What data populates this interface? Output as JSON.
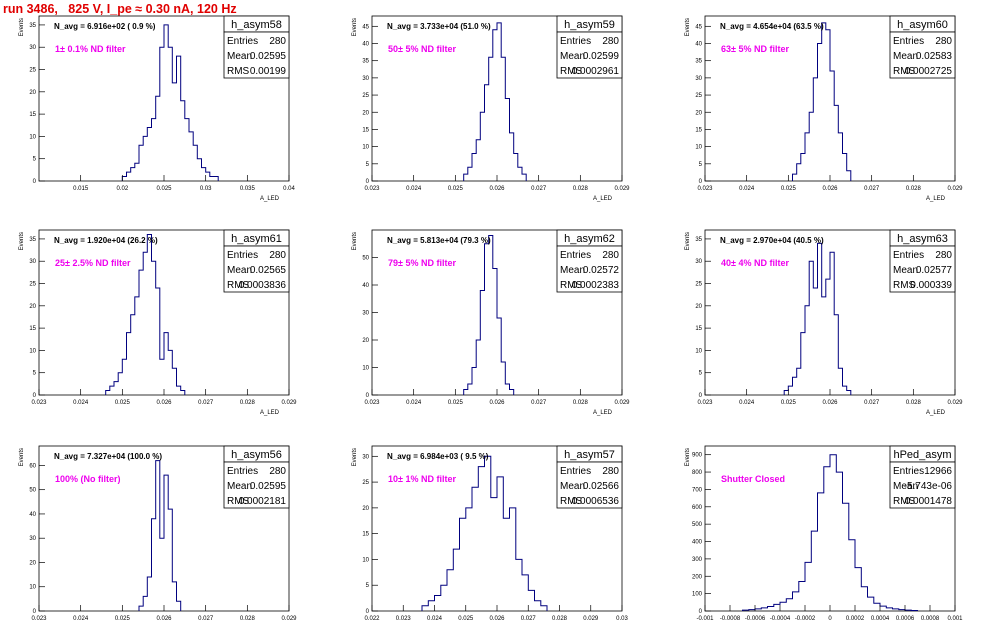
{
  "header": {
    "run_title": "run 3486,   825 V, I_pe ≈ 0.30 nA, 120 Hz"
  },
  "stats_labels": {
    "entries": "Entries",
    "mean": "Mean",
    "rms": "RMS"
  },
  "colors": {
    "histogram_line": "#00007f",
    "annotation": "#ee00ee",
    "title": "#e00000"
  },
  "chart_data": [
    {
      "type": "histogram",
      "name": "h_asym58",
      "stats": {
        "entries": "280",
        "mean": "0.02595",
        "rms": "0.00199"
      },
      "nbar_text": "N_avg = 6.916e+02 ( 0.9 %)",
      "annotation": "1± 0.1% ND filter",
      "xlabel": "A_LED",
      "ylabel": "Events",
      "xlim": [
        0.01,
        0.04
      ],
      "ylim": [
        0,
        37
      ],
      "xticks": [
        "0.015",
        "0.02",
        "0.025",
        "0.03",
        "0.035",
        "0.04"
      ],
      "xtick_values": [
        0.015,
        0.02,
        0.025,
        0.03,
        0.035,
        0.04
      ],
      "yticks": [
        0,
        5,
        10,
        15,
        20,
        25,
        30,
        35
      ],
      "bins_x": [
        0.02,
        0.0205,
        0.021,
        0.0215,
        0.022,
        0.0225,
        0.023,
        0.0235,
        0.024,
        0.0245,
        0.025,
        0.0255,
        0.026,
        0.0265,
        0.027,
        0.0275,
        0.028,
        0.0285,
        0.029,
        0.0295,
        0.03,
        0.0305,
        0.031
      ],
      "bins_y": [
        1,
        2,
        3,
        4,
        8,
        10,
        12,
        14,
        19,
        30,
        35,
        30,
        22,
        28,
        18,
        14,
        11,
        8,
        5,
        3,
        2,
        1,
        1
      ]
    },
    {
      "type": "histogram",
      "name": "h_asym59",
      "stats": {
        "entries": "280",
        "mean": "0.02599",
        "rms": "0.0002961"
      },
      "nbar_text": "N_avg = 3.733e+04 (51.0 %)",
      "annotation": "50± 5% ND filter",
      "xlabel": "A_LED",
      "ylabel": "Events",
      "xlim": [
        0.023,
        0.029
      ],
      "ylim": [
        0,
        48
      ],
      "xticks": [
        "0.023",
        "0.024",
        "0.025",
        "0.026",
        "0.027",
        "0.028",
        "0.029"
      ],
      "xtick_values": [
        0.023,
        0.024,
        0.025,
        0.026,
        0.027,
        0.028,
        0.029
      ],
      "yticks": [
        0,
        5,
        10,
        15,
        20,
        25,
        30,
        35,
        40,
        45
      ],
      "bins_x": [
        0.0252,
        0.0253,
        0.0254,
        0.0255,
        0.0256,
        0.0257,
        0.0258,
        0.0259,
        0.026,
        0.0261,
        0.0262,
        0.0263,
        0.0264,
        0.0265,
        0.0266
      ],
      "bins_y": [
        2,
        4,
        8,
        12,
        20,
        28,
        36,
        44,
        46,
        36,
        24,
        14,
        8,
        4,
        2
      ]
    },
    {
      "type": "histogram",
      "name": "h_asym60",
      "stats": {
        "entries": "280",
        "mean": "0.02583",
        "rms": "0.0002725"
      },
      "nbar_text": "N_avg = 4.654e+04 (63.5 %)",
      "annotation": "63± 5% ND filter",
      "xlabel": "A_LED",
      "ylabel": "Events",
      "xlim": [
        0.023,
        0.029
      ],
      "ylim": [
        0,
        48
      ],
      "xticks": [
        "0.023",
        "0.024",
        "0.025",
        "0.026",
        "0.027",
        "0.028",
        "0.029"
      ],
      "xtick_values": [
        0.023,
        0.024,
        0.025,
        0.026,
        0.027,
        0.028,
        0.029
      ],
      "yticks": [
        0,
        5,
        10,
        15,
        20,
        25,
        30,
        35,
        40,
        45
      ],
      "bins_x": [
        0.0251,
        0.0252,
        0.0253,
        0.0254,
        0.0255,
        0.0256,
        0.0257,
        0.0258,
        0.0259,
        0.026,
        0.0261,
        0.0262,
        0.0263,
        0.0264
      ],
      "bins_y": [
        2,
        5,
        8,
        14,
        20,
        30,
        40,
        46,
        44,
        32,
        22,
        14,
        8,
        3
      ]
    },
    {
      "type": "histogram",
      "name": "h_asym61",
      "stats": {
        "entries": "280",
        "mean": "0.02565",
        "rms": "0.0003836"
      },
      "nbar_text": "N_avg = 1.920e+04 (26.2 %)",
      "annotation": "25± 2.5% ND filter",
      "xlabel": "A_LED",
      "ylabel": "Events",
      "xlim": [
        0.023,
        0.029
      ],
      "ylim": [
        0,
        37
      ],
      "xticks": [
        "0.023",
        "0.024",
        "0.025",
        "0.026",
        "0.027",
        "0.028",
        "0.029"
      ],
      "xtick_values": [
        0.023,
        0.024,
        0.025,
        0.026,
        0.027,
        0.028,
        0.029
      ],
      "yticks": [
        0,
        5,
        10,
        15,
        20,
        25,
        30,
        35
      ],
      "bins_x": [
        0.0246,
        0.0247,
        0.0248,
        0.0249,
        0.025,
        0.0251,
        0.0252,
        0.0253,
        0.0254,
        0.0255,
        0.0256,
        0.0257,
        0.0258,
        0.0259,
        0.026,
        0.0261,
        0.0262,
        0.0263,
        0.0264
      ],
      "bins_y": [
        1,
        2,
        3,
        5,
        8,
        14,
        18,
        22,
        28,
        32,
        36,
        30,
        24,
        8,
        14,
        10,
        6,
        2,
        1
      ]
    },
    {
      "type": "histogram",
      "name": "h_asym62",
      "stats": {
        "entries": "280",
        "mean": "0.02572",
        "rms": "0.0002383"
      },
      "nbar_text": "N_avg = 5.813e+04 (79.3 %)",
      "annotation": "79± 5% ND filter",
      "xlabel": "A_LED",
      "ylabel": "Events",
      "xlim": [
        0.023,
        0.029
      ],
      "ylim": [
        0,
        60
      ],
      "xticks": [
        "0.023",
        "0.024",
        "0.025",
        "0.026",
        "0.027",
        "0.028",
        "0.029"
      ],
      "xtick_values": [
        0.023,
        0.024,
        0.025,
        0.026,
        0.027,
        0.028,
        0.029
      ],
      "yticks": [
        0,
        10,
        20,
        30,
        40,
        50
      ],
      "bins_x": [
        0.0252,
        0.0253,
        0.0254,
        0.0255,
        0.0256,
        0.0257,
        0.0258,
        0.0259,
        0.026,
        0.0261,
        0.0262,
        0.0263
      ],
      "bins_y": [
        2,
        4,
        10,
        20,
        38,
        55,
        58,
        46,
        28,
        12,
        4,
        2
      ]
    },
    {
      "type": "histogram",
      "name": "h_asym63",
      "stats": {
        "entries": "280",
        "mean": "0.02577",
        "rms": "0.000339"
      },
      "nbar_text": "N_avg = 2.970e+04 (40.5 %)",
      "annotation": "40± 4% ND filter",
      "xlabel": "A_LED",
      "ylabel": "Events",
      "xlim": [
        0.023,
        0.029
      ],
      "ylim": [
        0,
        37
      ],
      "xticks": [
        "0.023",
        "0.024",
        "0.025",
        "0.026",
        "0.027",
        "0.028",
        "0.029"
      ],
      "xtick_values": [
        0.023,
        0.024,
        0.025,
        0.026,
        0.027,
        0.028,
        0.029
      ],
      "yticks": [
        0,
        5,
        10,
        15,
        20,
        25,
        30,
        35
      ],
      "bins_x": [
        0.0249,
        0.025,
        0.0251,
        0.0252,
        0.0253,
        0.0254,
        0.0255,
        0.0256,
        0.0257,
        0.0258,
        0.0259,
        0.026,
        0.0261,
        0.0262,
        0.0263,
        0.0264
      ],
      "bins_y": [
        1,
        2,
        4,
        6,
        14,
        20,
        30,
        24,
        34,
        22,
        26,
        32,
        18,
        6,
        2,
        1
      ]
    },
    {
      "type": "histogram",
      "name": "h_asym56",
      "stats": {
        "entries": "280",
        "mean": "0.02595",
        "rms": "0.0002181"
      },
      "nbar_text": "N_avg = 7.327e+04 (100.0 %)",
      "annotation": "100% (No filter)",
      "xlabel": "A_LED",
      "ylabel": "Events",
      "xlim": [
        0.023,
        0.029
      ],
      "ylim": [
        0,
        68
      ],
      "xticks": [
        "0.023",
        "0.024",
        "0.025",
        "0.026",
        "0.027",
        "0.028",
        "0.029"
      ],
      "xtick_values": [
        0.023,
        0.024,
        0.025,
        0.026,
        0.027,
        0.028,
        0.029
      ],
      "yticks": [
        0,
        10,
        20,
        30,
        40,
        50,
        60
      ],
      "bins_x": [
        0.0254,
        0.0255,
        0.0256,
        0.0257,
        0.0258,
        0.0259,
        0.026,
        0.0261,
        0.0262,
        0.0263
      ],
      "bins_y": [
        2,
        6,
        14,
        38,
        62,
        30,
        56,
        42,
        12,
        4
      ]
    },
    {
      "type": "histogram",
      "name": "h_asym57",
      "stats": {
        "entries": "280",
        "mean": "0.02566",
        "rms": "0.0006536"
      },
      "nbar_text": "N_avg = 6.984e+03 ( 9.5 %)",
      "annotation": "10± 1% ND filter",
      "xlabel": "A_LED",
      "ylabel": "Events",
      "xlim": [
        0.022,
        0.03
      ],
      "ylim": [
        0,
        32
      ],
      "xticks": [
        "0.022",
        "0.023",
        "0.024",
        "0.025",
        "0.026",
        "0.027",
        "0.028",
        "0.029",
        "0.03"
      ],
      "xtick_values": [
        0.022,
        0.023,
        0.024,
        0.025,
        0.026,
        0.027,
        0.028,
        0.029,
        0.03
      ],
      "yticks": [
        0,
        5,
        10,
        15,
        20,
        25,
        30
      ],
      "bins_x": [
        0.0236,
        0.0238,
        0.024,
        0.0242,
        0.0244,
        0.0246,
        0.0248,
        0.025,
        0.0252,
        0.0254,
        0.0256,
        0.0258,
        0.026,
        0.0262,
        0.0264,
        0.0266,
        0.0268,
        0.027,
        0.0272,
        0.0274
      ],
      "bins_y": [
        1,
        2,
        3,
        5,
        8,
        12,
        18,
        20,
        24,
        28,
        30,
        22,
        26,
        18,
        20,
        10,
        7,
        4,
        2,
        1
      ]
    },
    {
      "type": "histogram",
      "name": "hPed_asym",
      "stats": {
        "entries": "12966",
        "mean": "-5.743e-06",
        "rms": "0.0001478"
      },
      "nbar_text": "",
      "annotation": "Shutter Closed",
      "xlabel": "A_LED",
      "ylabel": "Events",
      "xlim": [
        -0.001,
        0.001
      ],
      "ylim": [
        0,
        950
      ],
      "xticks": [
        "-0.001",
        "-0.0008",
        "-0.0006",
        "-0.0004",
        "-0.0002",
        "0",
        "0.0002",
        "0.0004",
        "0.0006",
        "0.0008",
        "0.001"
      ],
      "xtick_values": [
        -0.001,
        -0.0008,
        -0.0006,
        -0.0004,
        -0.0002,
        0,
        0.0002,
        0.0004,
        0.0006,
        0.0008,
        0.001
      ],
      "yticks": [
        0,
        100,
        200,
        300,
        400,
        500,
        600,
        700,
        800,
        900
      ],
      "bins_x": [
        -0.0007,
        -0.00065,
        -0.0006,
        -0.00055,
        -0.0005,
        -0.00045,
        -0.0004,
        -0.00035,
        -0.0003,
        -0.00025,
        -0.0002,
        -0.00015,
        -0.0001,
        -5e-05,
        0.0,
        5e-05,
        0.0001,
        0.00015,
        0.0002,
        0.00025,
        0.0003,
        0.00035,
        0.0004,
        0.00045,
        0.0005,
        0.00055,
        0.0006,
        0.00065
      ],
      "bins_y": [
        5,
        8,
        12,
        18,
        26,
        38,
        50,
        70,
        110,
        170,
        280,
        460,
        680,
        830,
        900,
        800,
        620,
        410,
        250,
        140,
        80,
        45,
        28,
        18,
        12,
        8,
        5,
        3
      ]
    }
  ]
}
